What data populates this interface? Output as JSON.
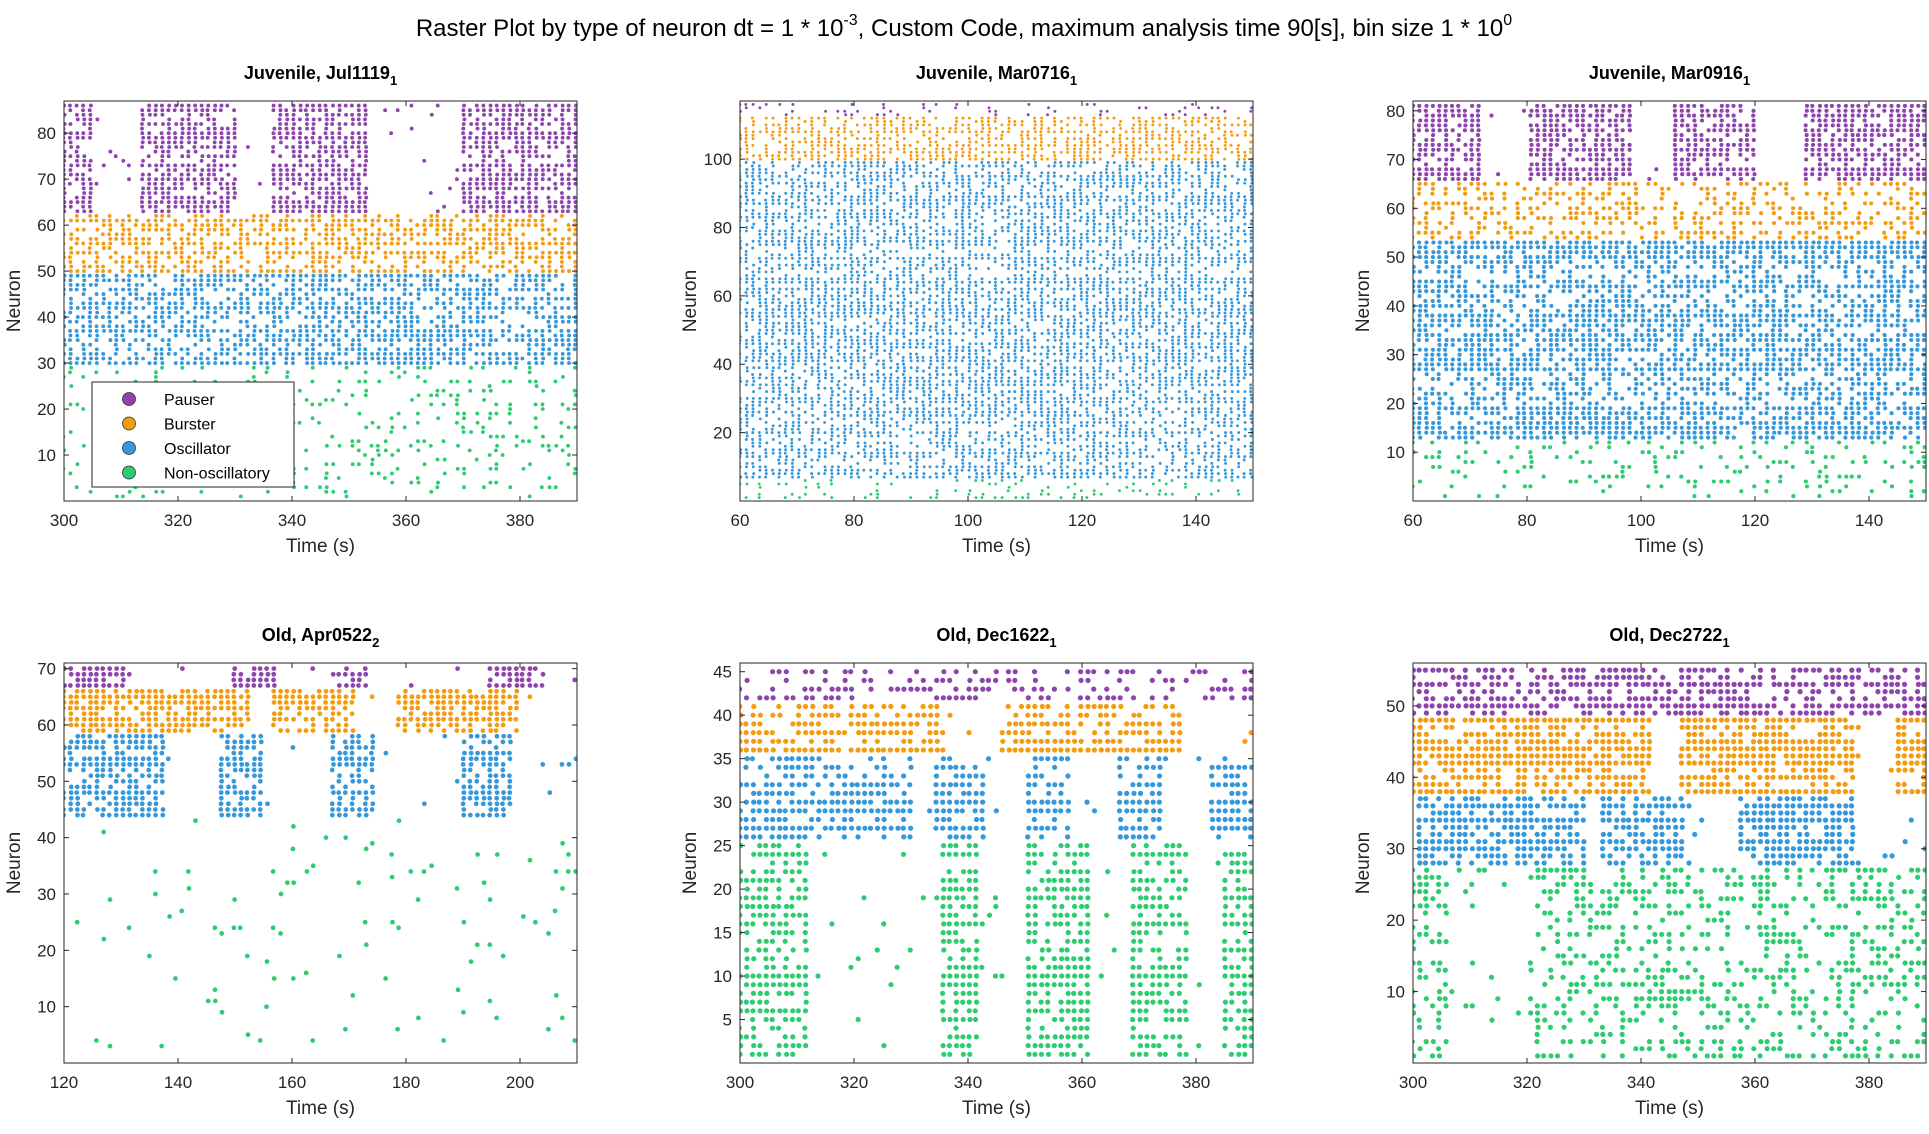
{
  "figure": {
    "title_parts": [
      "Raster Plot by type of neuron dt = 1 * 10",
      "-3",
      ", Custom Code, maximum analysis time 90[s], bin size 1 * 10",
      "0"
    ]
  },
  "colors": {
    "Pauser": "#8E44AD",
    "Burster": "#F39C12",
    "Oscillator": "#3498DB",
    "Non-oscillatory": "#2ECC71"
  },
  "legend": {
    "placement": "lower-left",
    "entries": [
      "Pauser",
      "Burster",
      "Oscillator",
      "Non-oscillatory"
    ]
  },
  "chart_data": [
    {
      "type": "scatter",
      "title": "Juvenile, Jul1119",
      "title_sub": "1",
      "xlabel": "Time (s)",
      "ylabel": "Neuron",
      "xlim": [
        300,
        390
      ],
      "ylim": [
        0,
        87
      ],
      "xticks": [
        300,
        320,
        340,
        360,
        380
      ],
      "yticks": [
        10,
        20,
        30,
        40,
        50,
        60,
        70,
        80
      ],
      "legend": true,
      "groups": [
        {
          "name": "Pauser",
          "from": 63,
          "to": 86,
          "activity": "bursty",
          "windows": [
            [
              300,
              305
            ],
            [
              313,
              330
            ],
            [
              336,
              354
            ],
            [
              370,
              390
            ]
          ]
        },
        {
          "name": "Burster",
          "from": 50,
          "to": 62,
          "activity": "dense",
          "windows": []
        },
        {
          "name": "Oscillator",
          "from": 30,
          "to": 49,
          "activity": "dense",
          "windows": []
        },
        {
          "name": "Non-oscillatory",
          "from": 1,
          "to": 29,
          "activity": "sparse",
          "windows": []
        }
      ]
    },
    {
      "type": "scatter",
      "title": "Juvenile, Mar0716",
      "title_sub": "1",
      "xlabel": "Time (s)",
      "ylabel": "Neuron",
      "xlim": [
        60,
        150
      ],
      "ylim": [
        0,
        117
      ],
      "xticks": [
        60,
        80,
        100,
        120,
        140
      ],
      "yticks": [
        20,
        40,
        60,
        80,
        100
      ],
      "legend": false,
      "groups": [
        {
          "name": "Pauser",
          "from": 113,
          "to": 116,
          "activity": "sparse",
          "windows": []
        },
        {
          "name": "Burster",
          "from": 100,
          "to": 112,
          "activity": "dense",
          "windows": []
        },
        {
          "name": "Oscillator",
          "from": 7,
          "to": 99,
          "activity": "dense",
          "windows": []
        },
        {
          "name": "Non-oscillatory",
          "from": 1,
          "to": 6,
          "activity": "sparse",
          "windows": []
        }
      ]
    },
    {
      "type": "scatter",
      "title": "Juvenile, Mar0916",
      "title_sub": "1",
      "xlabel": "Time (s)",
      "ylabel": "Neuron",
      "xlim": [
        60,
        150
      ],
      "ylim": [
        0,
        82
      ],
      "xticks": [
        60,
        80,
        100,
        120,
        140
      ],
      "yticks": [
        10,
        20,
        30,
        40,
        50,
        60,
        70,
        80
      ],
      "legend": false,
      "groups": [
        {
          "name": "Pauser",
          "from": 66,
          "to": 81,
          "activity": "bursty",
          "windows": [
            [
              60,
              72
            ],
            [
              80,
              98
            ],
            [
              105,
              120
            ],
            [
              128,
              150
            ]
          ]
        },
        {
          "name": "Burster",
          "from": 54,
          "to": 65,
          "activity": "medium",
          "windows": []
        },
        {
          "name": "Oscillator",
          "from": 13,
          "to": 53,
          "activity": "dense",
          "windows": []
        },
        {
          "name": "Non-oscillatory",
          "from": 1,
          "to": 12,
          "activity": "sparse",
          "windows": []
        }
      ]
    },
    {
      "type": "scatter",
      "title": "Old, Apr0522",
      "title_sub": "2",
      "xlabel": "Time (s)",
      "ylabel": "Neuron",
      "xlim": [
        120,
        210
      ],
      "ylim": [
        0,
        71
      ],
      "xticks": [
        120,
        140,
        160,
        180,
        200
      ],
      "yticks": [
        10,
        20,
        30,
        40,
        50,
        60,
        70
      ],
      "legend": false,
      "groups": [
        {
          "name": "Pauser",
          "from": 67,
          "to": 70,
          "activity": "bursty",
          "windows": [
            [
              120,
              131
            ],
            [
              149,
              157
            ],
            [
              168,
              174
            ],
            [
              194,
              204
            ]
          ]
        },
        {
          "name": "Burster",
          "from": 59,
          "to": 66,
          "activity": "bursty",
          "windows": [
            [
              120,
              153
            ],
            [
              156,
              171
            ],
            [
              178,
              200
            ]
          ]
        },
        {
          "name": "Oscillator",
          "from": 44,
          "to": 58,
          "activity": "bursty",
          "windows": [
            [
              120,
              138
            ],
            [
              147,
              155
            ],
            [
              167,
              175
            ],
            [
              190,
              199
            ]
          ]
        },
        {
          "name": "Non-oscillatory",
          "from": 1,
          "to": 43,
          "activity": "very-sparse",
          "windows": []
        }
      ]
    },
    {
      "type": "scatter",
      "title": "Old, Dec1622",
      "title_sub": "1",
      "xlabel": "Time (s)",
      "ylabel": "Neuron",
      "xlim": [
        300,
        390
      ],
      "ylim": [
        0,
        46
      ],
      "xticks": [
        300,
        320,
        340,
        360,
        380
      ],
      "yticks": [
        5,
        10,
        15,
        20,
        25,
        30,
        35,
        40,
        45
      ],
      "legend": false,
      "groups": [
        {
          "name": "Pauser",
          "from": 42,
          "to": 45,
          "activity": "medium",
          "windows": []
        },
        {
          "name": "Burster",
          "from": 36,
          "to": 41,
          "activity": "bursty",
          "windows": [
            [
              300,
              336
            ],
            [
              345,
              378
            ]
          ]
        },
        {
          "name": "Oscillator",
          "from": 26,
          "to": 35,
          "activity": "bursty",
          "windows": [
            [
              300,
              330
            ],
            [
              334,
              343
            ],
            [
              350,
              358
            ],
            [
              366,
              374
            ],
            [
              382,
              390
            ]
          ]
        },
        {
          "name": "Non-oscillatory",
          "from": 1,
          "to": 25,
          "activity": "bursty",
          "windows": [
            [
              300,
              312
            ],
            [
              335,
              342
            ],
            [
              350,
              362
            ],
            [
              368,
              379
            ],
            [
              385,
              390
            ]
          ]
        }
      ]
    },
    {
      "type": "scatter",
      "title": "Old, Dec2722",
      "title_sub": "1",
      "xlabel": "Time (s)",
      "ylabel": "Neuron",
      "xlim": [
        300,
        390
      ],
      "ylim": [
        0,
        56
      ],
      "xticks": [
        300,
        320,
        340,
        360,
        380
      ],
      "yticks": [
        10,
        20,
        30,
        40,
        50
      ],
      "legend": false,
      "groups": [
        {
          "name": "Pauser",
          "from": 49,
          "to": 55,
          "activity": "dense",
          "windows": []
        },
        {
          "name": "Burster",
          "from": 38,
          "to": 48,
          "activity": "bursty",
          "windows": [
            [
              300,
              342
            ],
            [
              346,
              378
            ],
            [
              385,
              390
            ]
          ]
        },
        {
          "name": "Oscillator",
          "from": 28,
          "to": 37,
          "activity": "bursty",
          "windows": [
            [
              301,
              330
            ],
            [
              333,
              348
            ],
            [
              357,
              378
            ]
          ]
        },
        {
          "name": "Non-oscillatory",
          "from": 1,
          "to": 27,
          "activity": "medium",
          "windows": [
            [
              300,
              306
            ],
            [
              320,
              390
            ]
          ]
        }
      ]
    }
  ]
}
